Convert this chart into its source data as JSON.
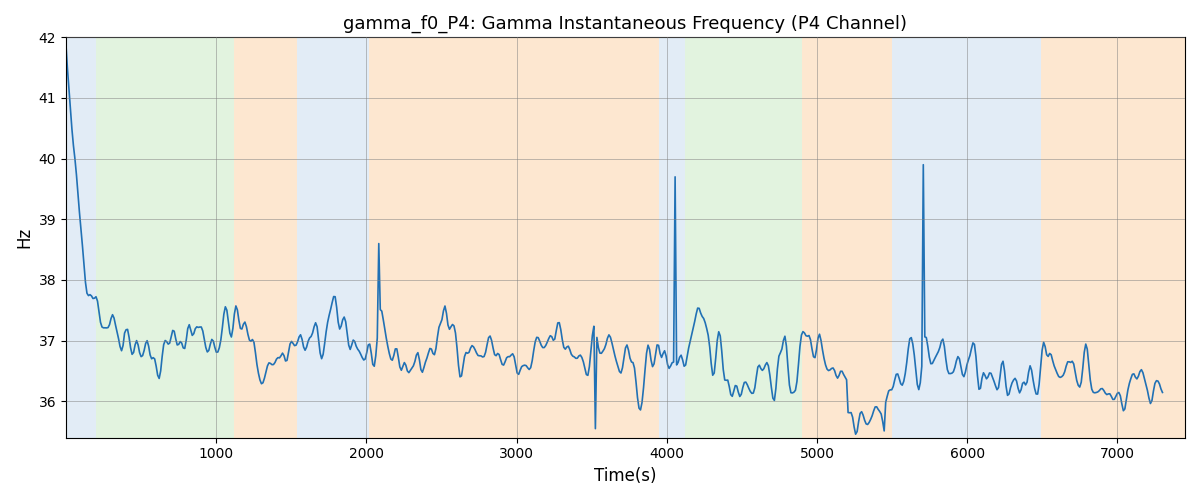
{
  "title": "gamma_f0_P4: Gamma Instantaneous Frequency (P4 Channel)",
  "xlabel": "Time(s)",
  "ylabel": "Hz",
  "xlim": [
    0,
    7450
  ],
  "ylim": [
    35.4,
    42.0
  ],
  "yticks": [
    36,
    37,
    38,
    39,
    40,
    41,
    42
  ],
  "xticks": [
    1000,
    2000,
    3000,
    4000,
    5000,
    6000,
    7000
  ],
  "line_color": "#2171b5",
  "line_width": 1.2,
  "bands": [
    {
      "xmin": 0,
      "xmax": 200,
      "color": "#c6dbef",
      "alpha": 0.5
    },
    {
      "xmin": 200,
      "xmax": 1120,
      "color": "#c7e9c0",
      "alpha": 0.5
    },
    {
      "xmin": 1120,
      "xmax": 1540,
      "color": "#fdd0a2",
      "alpha": 0.5
    },
    {
      "xmin": 1540,
      "xmax": 2020,
      "color": "#c6dbef",
      "alpha": 0.5
    },
    {
      "xmin": 2020,
      "xmax": 3950,
      "color": "#fdd0a2",
      "alpha": 0.5
    },
    {
      "xmin": 3950,
      "xmax": 4120,
      "color": "#c6dbef",
      "alpha": 0.5
    },
    {
      "xmin": 4120,
      "xmax": 4900,
      "color": "#c7e9c0",
      "alpha": 0.5
    },
    {
      "xmin": 4900,
      "xmax": 5500,
      "color": "#fdd0a2",
      "alpha": 0.5
    },
    {
      "xmin": 5500,
      "xmax": 6490,
      "color": "#c6dbef",
      "alpha": 0.5
    },
    {
      "xmin": 6490,
      "xmax": 7450,
      "color": "#fdd0a2",
      "alpha": 0.5
    }
  ],
  "seed": 42,
  "n_points": 730,
  "base_freq": 37.0
}
